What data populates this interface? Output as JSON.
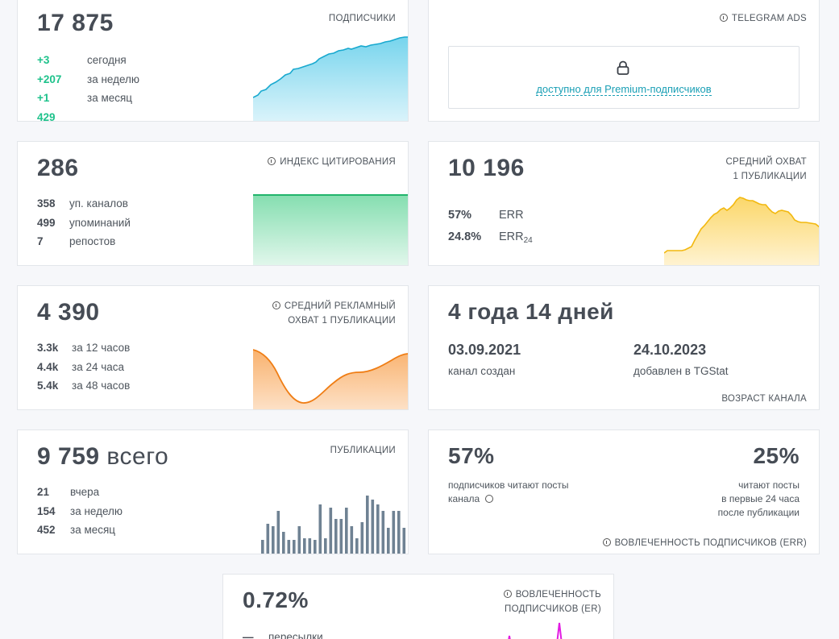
{
  "subscribers": {
    "total": "17 875",
    "caption": "подписчики",
    "rows": [
      {
        "value": "+3",
        "label": "сегодня"
      },
      {
        "value": "+207",
        "label": "за неделю"
      },
      {
        "value": "+1 429",
        "label": "за месяц"
      }
    ]
  },
  "ads": {
    "caption": "telegram ads",
    "premium_link": "доступно для Premium-подписчиков"
  },
  "citation": {
    "total": "286",
    "caption": "индекс цитирования",
    "rows": [
      {
        "value": "358",
        "label": "уп. каналов"
      },
      {
        "value": "499",
        "label": "упоминаний"
      },
      {
        "value": "7",
        "label": "репостов"
      }
    ]
  },
  "reach": {
    "total": "10 196",
    "caption_line1": "средний охват",
    "caption_line2": "1 публикации",
    "err_value": "57%",
    "err_label": "ERR",
    "err24_value": "24.8%",
    "err24_label": "ERR",
    "err24_sub": "24"
  },
  "ad_reach": {
    "total": "4 390",
    "caption_line1": "средний рекламный",
    "caption_line2": "охват 1 публикации",
    "rows": [
      {
        "value": "3.3k",
        "label": "за 12 часов"
      },
      {
        "value": "4.4k",
        "label": "за 24 часа"
      },
      {
        "value": "5.4k",
        "label": "за 48 часов"
      }
    ]
  },
  "age": {
    "total": "4 года 14 дней",
    "created_date": "03.09.2021",
    "created_label": "канал создан",
    "added_date": "24.10.2023",
    "added_label": "добавлен в TGStat",
    "caption": "возраст канала"
  },
  "posts": {
    "total": "9 759",
    "total_suffix": "всего",
    "caption": "публикации",
    "rows": [
      {
        "value": "21",
        "label": "вчера"
      },
      {
        "value": "154",
        "label": "за неделю"
      },
      {
        "value": "452",
        "label": "за месяц"
      }
    ]
  },
  "engagement": {
    "left_value": "57%",
    "left_text1": "подписчиков читают посты",
    "left_text2": "канала",
    "right_value": "25%",
    "right_text1": "читают посты",
    "right_text2": "в первые 24 часа",
    "right_text3": "после публикации",
    "caption": "вовлеченность подписчиков (err)"
  },
  "er": {
    "total": "0.72%",
    "caption_line1": "вовлеченность",
    "caption_line2": "подписчиков (er)",
    "row_value": "—",
    "row_label": "пересылки"
  },
  "colors": {
    "teal": "#1fb3d6",
    "green": "#2ec27e",
    "yellow": "#f5c431",
    "orange": "#f08a24",
    "bars": "#6f8293",
    "magenta": "#e21be2"
  }
}
